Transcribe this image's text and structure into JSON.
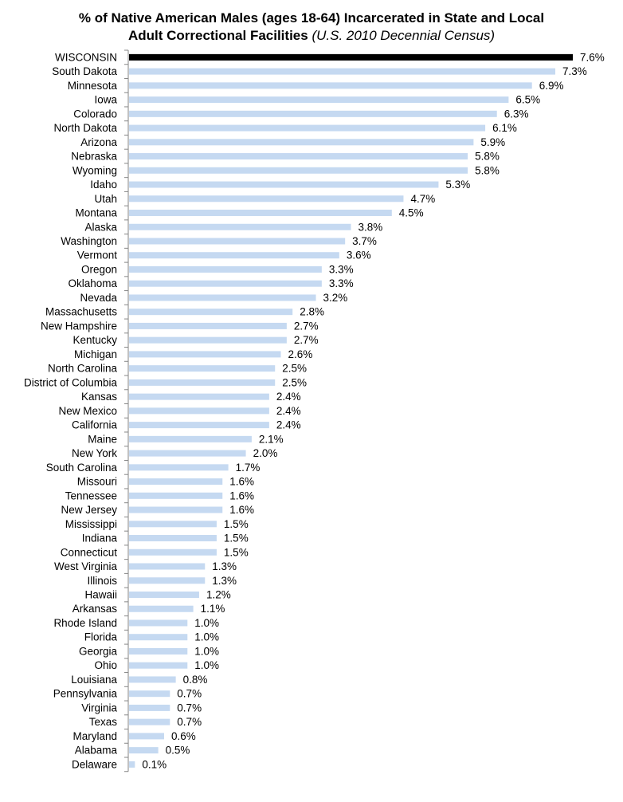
{
  "chart_data": {
    "type": "bar",
    "orientation": "horizontal",
    "title_main": "% of Native American Males (ages 18-64) Incarcerated in State and Local",
    "title_line2": "Adult Correctional Facilities",
    "title_italic": "(U.S. 2010 Decennial Census)",
    "xlabel": "",
    "ylabel": "",
    "xlim": [
      0,
      7.6
    ],
    "grid": false,
    "legend": "none",
    "value_suffix": "%",
    "highlight_color": "#000000",
    "bar_color": "#c5d9f1",
    "categories": [
      "WISCONSIN",
      "South Dakota",
      "Minnesota",
      "Iowa",
      "Colorado",
      "North Dakota",
      "Arizona",
      "Nebraska",
      "Wyoming",
      "Idaho",
      "Utah",
      "Montana",
      "Alaska",
      "Washington",
      "Vermont",
      "Oregon",
      "Oklahoma",
      "Nevada",
      "Massachusetts",
      "New Hampshire",
      "Kentucky",
      "Michigan",
      "North Carolina",
      "District of Columbia",
      "Kansas",
      "New Mexico",
      "California",
      "Maine",
      "New York",
      "South Carolina",
      "Missouri",
      "Tennessee",
      "New Jersey",
      "Mississippi",
      "Indiana",
      "Connecticut",
      "West Virginia",
      "Illinois",
      "Hawaii",
      "Arkansas",
      "Rhode Island",
      "Florida",
      "Georgia",
      "Ohio",
      "Louisiana",
      "Pennsylvania",
      "Virginia",
      "Texas",
      "Maryland",
      "Alabama",
      "Delaware"
    ],
    "values": [
      7.6,
      7.3,
      6.9,
      6.5,
      6.3,
      6.1,
      5.9,
      5.8,
      5.8,
      5.3,
      4.7,
      4.5,
      3.8,
      3.7,
      3.6,
      3.3,
      3.3,
      3.2,
      2.8,
      2.7,
      2.7,
      2.6,
      2.5,
      2.5,
      2.4,
      2.4,
      2.4,
      2.1,
      2.0,
      1.7,
      1.6,
      1.6,
      1.6,
      1.5,
      1.5,
      1.5,
      1.3,
      1.3,
      1.2,
      1.1,
      1.0,
      1.0,
      1.0,
      1.0,
      0.8,
      0.7,
      0.7,
      0.7,
      0.6,
      0.5,
      0.1
    ],
    "value_labels": [
      "7.6%",
      "7.3%",
      "6.9%",
      "6.5%",
      "6.3%",
      "6.1%",
      "5.9%",
      "5.8%",
      "5.8%",
      "5.3%",
      "4.7%",
      "4.5%",
      "3.8%",
      "3.7%",
      "3.6%",
      "3.3%",
      "3.3%",
      "3.2%",
      "2.8%",
      "2.7%",
      "2.7%",
      "2.6%",
      "2.5%",
      "2.5%",
      "2.4%",
      "2.4%",
      "2.4%",
      "2.1%",
      "2.0%",
      "1.7%",
      "1.6%",
      "1.6%",
      "1.6%",
      "1.5%",
      "1.5%",
      "1.5%",
      "1.3%",
      "1.3%",
      "1.2%",
      "1.1%",
      "1.0%",
      "1.0%",
      "1.0%",
      "1.0%",
      "0.8%",
      "0.7%",
      "0.7%",
      "0.7%",
      "0.6%",
      "0.5%",
      "0.1%"
    ],
    "highlight_category": "WISCONSIN"
  }
}
